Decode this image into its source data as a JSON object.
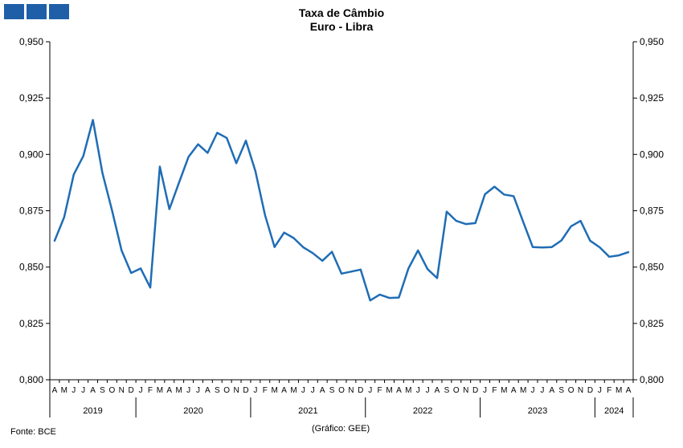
{
  "header": {
    "logo_label": "logo"
  },
  "chart_data": {
    "type": "line",
    "title": "Taxa de Câmbio",
    "subtitle": "Euro - Libra",
    "xlabel": "",
    "ylabel": "",
    "ylim": [
      0.8,
      0.95
    ],
    "yticks": [
      "0,800",
      "0,825",
      "0,850",
      "0,875",
      "0,900",
      "0,925",
      "0,950"
    ],
    "grid": false,
    "legend": "none",
    "color": "#1f6db5",
    "months": [
      "A",
      "M",
      "J",
      "J",
      "A",
      "S",
      "O",
      "N",
      "D",
      "J",
      "F",
      "M",
      "A",
      "M",
      "J",
      "J",
      "A",
      "S",
      "O",
      "N",
      "D",
      "J",
      "F",
      "M",
      "A",
      "M",
      "J",
      "J",
      "A",
      "S",
      "O",
      "N",
      "D",
      "J",
      "F",
      "M",
      "A",
      "M",
      "J",
      "J",
      "A",
      "S",
      "O",
      "N",
      "D",
      "J",
      "F",
      "M",
      "A",
      "M",
      "J",
      "J",
      "A",
      "S",
      "O",
      "N",
      "D",
      "J",
      "F",
      "M",
      "A"
    ],
    "years": [
      {
        "label": "2019",
        "count": 9
      },
      {
        "label": "2020",
        "count": 12
      },
      {
        "label": "2021",
        "count": 12
      },
      {
        "label": "2022",
        "count": 12
      },
      {
        "label": "2023",
        "count": 12
      },
      {
        "label": "2024",
        "count": 4
      }
    ],
    "series": [
      {
        "values": [
          0.8617,
          0.8722,
          0.8911,
          0.8993,
          0.9153,
          0.8917,
          0.8752,
          0.8574,
          0.8474,
          0.8494,
          0.8409,
          0.8946,
          0.8757,
          0.8874,
          0.8989,
          0.9045,
          0.9007,
          0.9096,
          0.9073,
          0.8961,
          0.9061,
          0.8925,
          0.8731,
          0.8589,
          0.8653,
          0.8629,
          0.8588,
          0.8562,
          0.8528,
          0.8568,
          0.8471,
          0.848,
          0.8489,
          0.8352,
          0.8378,
          0.8363,
          0.8365,
          0.8494,
          0.8574,
          0.8491,
          0.8451,
          0.8746,
          0.8705,
          0.8691,
          0.8695,
          0.8823,
          0.8857,
          0.8822,
          0.8815,
          0.8701,
          0.8589,
          0.8587,
          0.8589,
          0.8618,
          0.8681,
          0.8705,
          0.8617,
          0.8588,
          0.8546,
          0.8552,
          0.8566
        ]
      }
    ]
  },
  "footer": {
    "source": "Fonte: BCE",
    "credit": "(Gráfico: GEE)"
  }
}
